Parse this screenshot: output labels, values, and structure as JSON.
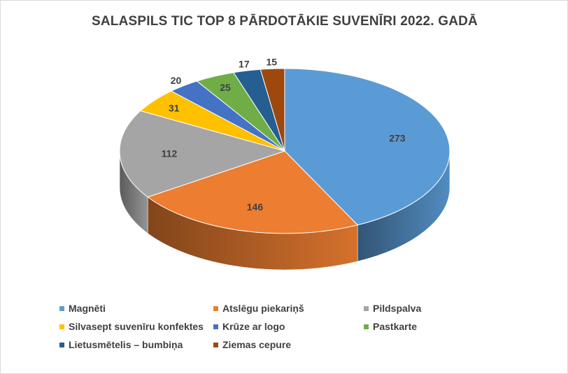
{
  "chart_data": {
    "type": "pie",
    "title": "SALASPILS TIC TOP 8 PĀRDOTĀKIE SUVENĪRI 2022. GADĀ",
    "categories": [
      "Magnēti",
      "Atslēgu piekariņš",
      "Pildspalva",
      "Silvasept suvenīru konfektes",
      "Krūze ar logo",
      "Pastkarte",
      "Lietusmētelis – bumbiņa",
      "Ziemas cepure"
    ],
    "values": [
      273,
      146,
      112,
      31,
      20,
      25,
      17,
      15
    ],
    "colors": [
      "#5b9bd5",
      "#ed7d31",
      "#a5a5a5",
      "#ffc000",
      "#4472c4",
      "#70ad47",
      "#255e91",
      "#9e480e"
    ],
    "legend_position": "bottom",
    "style": "3d"
  }
}
